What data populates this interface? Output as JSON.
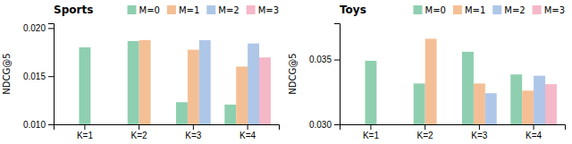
{
  "chart_data": [
    {
      "type": "bar",
      "title": "Sports",
      "y_label": "NDCG@5",
      "categories": [
        "K=1",
        "K=2",
        "K=3",
        "K=4"
      ],
      "series": [
        {
          "name": "M=0",
          "color": "#8ecfb0",
          "values": [
            0.018,
            0.01865,
            0.0123,
            0.01205
          ]
        },
        {
          "name": "M=1",
          "color": "#f5bf95",
          "values": [
            null,
            0.01875,
            0.01775,
            0.016
          ]
        },
        {
          "name": "M=2",
          "color": "#aec6e8",
          "values": [
            null,
            null,
            0.01875,
            0.0184
          ]
        },
        {
          "name": "M=3",
          "color": "#f5b8c8",
          "values": [
            null,
            null,
            null,
            0.01695
          ]
        }
      ],
      "ylim": [
        0.01,
        0.0205
      ],
      "yticks": [
        {
          "value": 0.01,
          "label": "0.010"
        },
        0.015,
        {
          "value": 0.02,
          "label": "0.020"
        }
      ],
      "legend": "upper right",
      "grid": false
    },
    {
      "type": "bar",
      "title": "Toys",
      "y_label": "NDCG@5",
      "categories": [
        "K=1",
        "K=2",
        "K=3",
        "K=4"
      ],
      "series": [
        {
          "name": "M=0",
          "color": "#8ecfb0",
          "values": [
            0.0349,
            0.03315,
            0.0356,
            0.03385
          ]
        },
        {
          "name": "M=1",
          "color": "#f5bf95",
          "values": [
            null,
            0.0366,
            0.03315,
            0.0326
          ]
        },
        {
          "name": "M=2",
          "color": "#aec6e8",
          "values": [
            null,
            null,
            0.0324,
            0.03375
          ]
        },
        {
          "name": "M=3",
          "color": "#f5b8c8",
          "values": [
            null,
            null,
            null,
            0.0331
          ]
        }
      ],
      "ylim": [
        0.03,
        0.0378
      ],
      "yticks": [
        {
          "value": 0.03,
          "label": "0.030"
        },
        0.035
      ],
      "legend": "upper right",
      "grid": false
    }
  ]
}
